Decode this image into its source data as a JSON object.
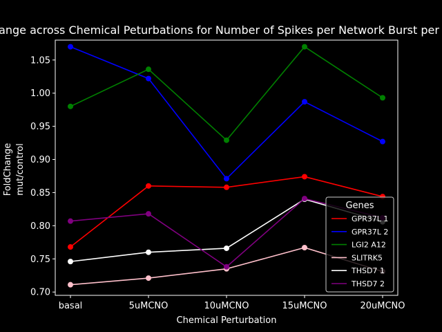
{
  "chart_data": {
    "type": "line",
    "title": "Fold Change across Chemical Peturbations for Number of Spikes per Network Burst per Condition",
    "xlabel": "Chemical Perturbation",
    "ylabel_lines": [
      "FoldChange",
      "mut/control"
    ],
    "categories": [
      "basal",
      "5uMCNO",
      "10uMCNO",
      "15uMCNO",
      "20uMCNO"
    ],
    "ylim": [
      0.695,
      1.08
    ],
    "yticks": [
      0.7,
      0.75,
      0.8,
      0.85,
      0.9,
      0.95,
      1.0,
      1.05
    ],
    "ytick_labels": [
      "0.70",
      "0.75",
      "0.80",
      "0.85",
      "0.90",
      "0.95",
      "1.00",
      "1.05"
    ],
    "grid": false,
    "legend_title": "Genes",
    "legend_position": "lower-right",
    "series": [
      {
        "name": "GPR37L 1",
        "color": "#ff0000",
        "values": [
          0.768,
          0.86,
          0.858,
          0.874,
          0.844
        ]
      },
      {
        "name": "GPR37L 2",
        "color": "#0000ff",
        "values": [
          1.07,
          1.022,
          0.871,
          0.987,
          0.927
        ]
      },
      {
        "name": "LGI2 A12",
        "color": "#008000",
        "values": [
          0.98,
          1.036,
          0.929,
          1.07,
          0.993
        ]
      },
      {
        "name": "SLITRK5",
        "color": "#ffc0cb",
        "values": [
          0.711,
          0.721,
          0.735,
          0.767,
          0.731
        ]
      },
      {
        "name": "THSD7 1",
        "color": "#ffffff",
        "values": [
          0.746,
          0.76,
          0.766,
          0.84,
          0.806
        ]
      },
      {
        "name": "THSD7 2",
        "color": "#800080",
        "values": [
          0.807,
          0.818,
          0.738,
          0.841,
          0.812
        ]
      }
    ]
  }
}
